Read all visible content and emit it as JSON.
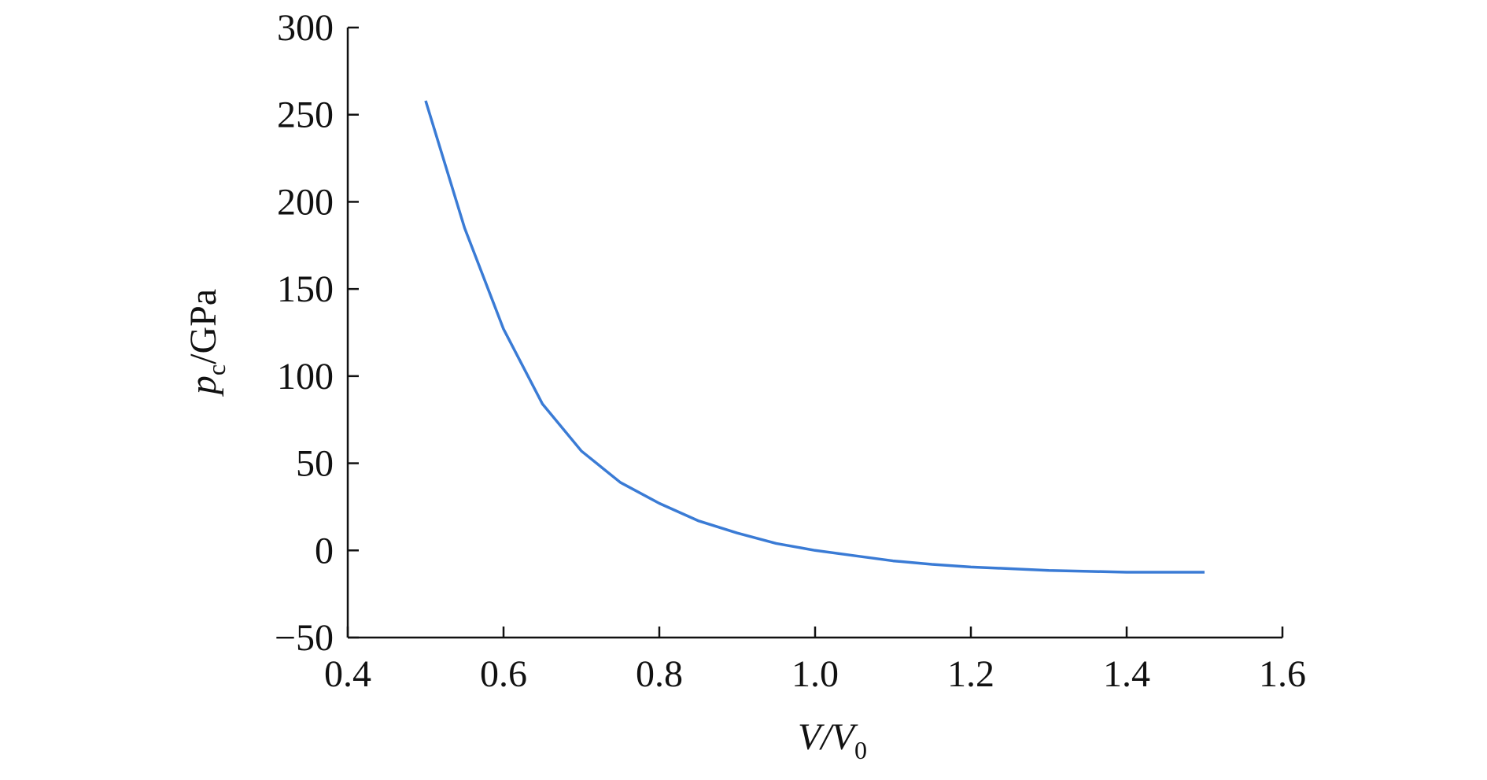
{
  "chart_data": {
    "type": "line",
    "xlabel_parts": [
      "V/V",
      "0"
    ],
    "ylabel_parts": [
      "p",
      "c",
      "/GPa"
    ],
    "x": [
      0.5,
      0.55,
      0.6,
      0.65,
      0.7,
      0.75,
      0.8,
      0.85,
      0.9,
      0.95,
      1.0,
      1.05,
      1.1,
      1.15,
      1.2,
      1.25,
      1.3,
      1.35,
      1.4,
      1.45,
      1.5
    ],
    "series": [
      {
        "color": "#3a7bd5",
        "values": [
          258,
          185,
          127,
          84,
          57,
          39,
          27,
          17,
          10,
          4,
          0,
          -3,
          -6,
          -8,
          -9.5,
          -10.5,
          -11.5,
          -12,
          -12.5,
          -12.5,
          -12.5
        ]
      }
    ],
    "xlim": [
      0.4,
      1.6
    ],
    "xticks": [
      0.4,
      0.6,
      0.8,
      {
        "value": 1,
        "label": "1.0"
      },
      1.2,
      1.4,
      1.6
    ],
    "ylim": [
      -50,
      300
    ],
    "yticks": [
      {
        "value": -50,
        "label": "−50"
      },
      0,
      50,
      100,
      150,
      200,
      250,
      300
    ]
  }
}
